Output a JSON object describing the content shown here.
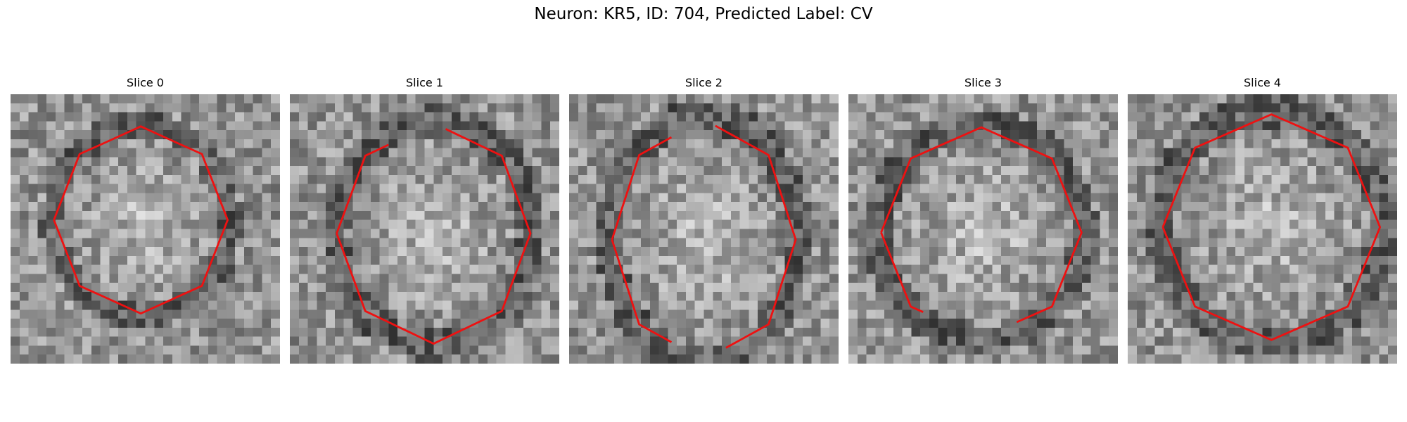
{
  "figure": {
    "title": "Neuron: KR5, ID: 704, Predicted Label: CV"
  },
  "panels": [
    {
      "title": "Slice 0"
    },
    {
      "title": "Slice 1"
    },
    {
      "title": "Slice 2"
    },
    {
      "title": "Slice 3"
    },
    {
      "title": "Slice 4"
    }
  ],
  "colors": {
    "contour": "#ee1111",
    "background": "#ffffff"
  }
}
